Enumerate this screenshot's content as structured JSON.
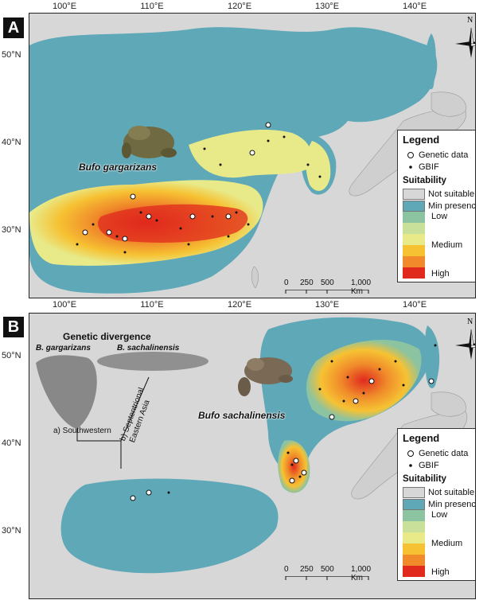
{
  "panels": [
    {
      "letter": "A",
      "species_label": "Bufo gargarizans",
      "legend": {
        "title": "Legend",
        "genetic": "Genetic data",
        "gbif": "GBIF",
        "suitability_title": "Suitability",
        "not_suitable": "Not suitable",
        "min_presence": "Min presence",
        "low": "Low",
        "medium": "Medium",
        "high": "High"
      },
      "scale": {
        "labels": [
          "0",
          "250",
          "500",
          "1,000 Km"
        ]
      },
      "lon_ticks": [
        "100°E",
        "110°E",
        "120°E",
        "130°E",
        "140°E"
      ],
      "lat_ticks": [
        "50°N",
        "40°N",
        "30°N"
      ]
    },
    {
      "letter": "B",
      "species_label": "Bufo sachalinensis",
      "legend": {
        "title": "Legend",
        "genetic": "Genetic data",
        "gbif": "GBIF",
        "suitability_title": "Suitability",
        "not_suitable": "Not suitable",
        "min_presence": "Min presence",
        "low": "Low",
        "medium": "Medium",
        "high": "High"
      },
      "scale": {
        "labels": [
          "0",
          "250",
          "500",
          "1,000 Km"
        ]
      },
      "lon_ticks": [
        "100°E",
        "110°E",
        "120°E",
        "130°E",
        "140°E"
      ],
      "lat_ticks": [
        "50°N",
        "40°N",
        "30°N"
      ],
      "divergence": {
        "title": "Genetic divergence",
        "clade_left": "B. gargarizans",
        "clade_right": "B. sachalinensis",
        "branch_a": "a) Southwestern",
        "branch_b_line1": "b) Septentrional",
        "branch_b_line2": "Eastern Asia"
      }
    }
  ],
  "north_label": "N",
  "colors": {
    "not_suitable": "#d7d7d7",
    "min_presence": "#5fa8b8",
    "low": "#8cc3a0",
    "low_mid": "#e8ea8a",
    "medium": "#f6c233",
    "medium_high": "#f08a2a",
    "high": "#e02a1e"
  }
}
